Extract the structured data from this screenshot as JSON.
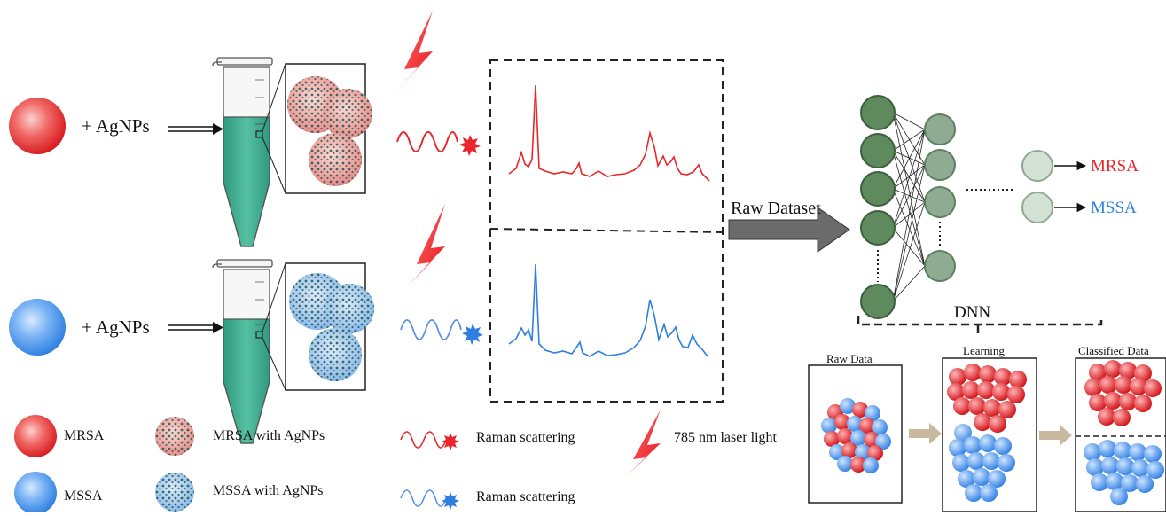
{
  "rows": [
    {
      "reagent": "+ AgNPs"
    },
    {
      "reagent": "+ AgNPs"
    }
  ],
  "arrow_label": "Raw Dataset",
  "network": {
    "name": "DNN",
    "outputs": [
      "MRSA",
      "MSSA"
    ]
  },
  "panels": [
    "Raw Data",
    "Learning",
    "Classified Data"
  ],
  "legend": {
    "mrsa": "MRSA",
    "mssa": "MSSA",
    "mrsa_agnps": "MRSA with AgNPs",
    "mssa_agnps": "MSSA with AgNPs",
    "raman_red": "Raman scattering",
    "raman_blue": "Raman scattering",
    "laser": "785 nm laser light"
  },
  "colors": {
    "red": "#e8262b",
    "blue": "#2e7fe0",
    "teal": "#3aa88e",
    "node_dark": "#5e8a5e",
    "node_mid": "#8aa88e",
    "node_light": "#c8d8cc"
  }
}
